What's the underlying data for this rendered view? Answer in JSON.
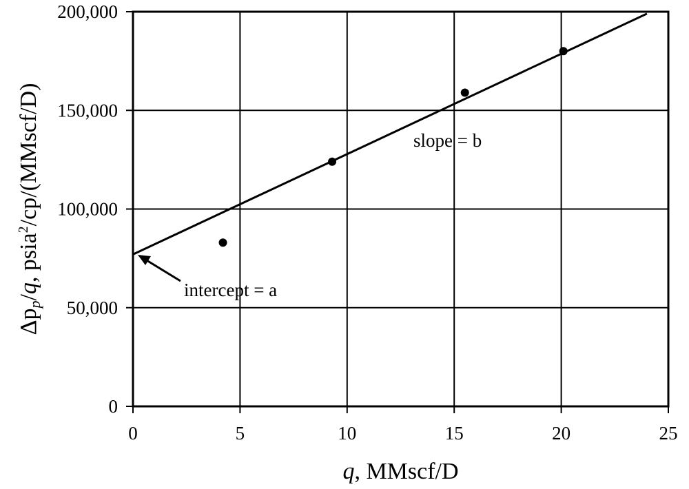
{
  "chart_data": {
    "type": "scatter",
    "x_label_parts": [
      "q",
      ", MMscf/D"
    ],
    "y_label_parts": [
      "Δp",
      "p",
      "/",
      "q",
      ", psia",
      "2",
      "/cp/(MMscf/D)"
    ],
    "x": [
      4.2,
      9.3,
      15.5,
      20.1
    ],
    "values": [
      83000,
      124000,
      159000,
      180000
    ],
    "color": "#000000",
    "fit_line": {
      "x": [
        0,
        24
      ],
      "y": [
        77000,
        199000
      ]
    },
    "annotations": [
      "slope = b",
      "intercept = a"
    ],
    "xlim": [
      0,
      25
    ],
    "xticks": [
      0,
      5,
      10,
      15,
      20,
      25
    ],
    "ylim": [
      0,
      200000
    ],
    "yticks": [
      0,
      {
        "value": 50000,
        "label": "50,000"
      },
      {
        "value": 100000,
        "label": "100,000"
      },
      {
        "value": 150000,
        "label": "150,000"
      },
      {
        "value": 200000,
        "label": "200,000"
      }
    ],
    "grid": true
  }
}
